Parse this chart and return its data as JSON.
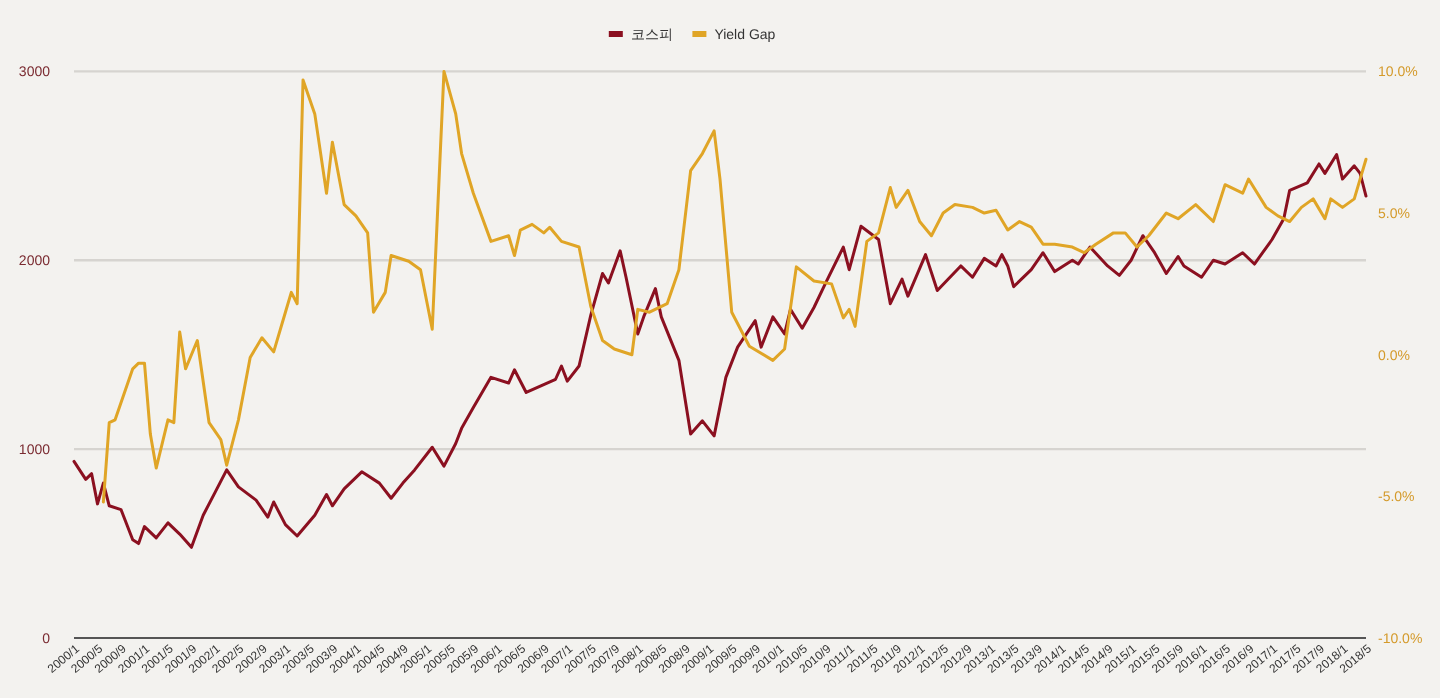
{
  "chart_data": {
    "type": "line",
    "legend": "top",
    "grid": "y",
    "xlim": [
      "2000-01",
      "2018-05"
    ],
    "ylim": [
      0,
      3000
    ],
    "yticks": [
      0,
      1000,
      2000,
      3000
    ],
    "y2lim": [
      -10,
      10
    ],
    "y2ticks": [
      {
        "value": -10,
        "label": "-10.0%"
      },
      {
        "value": -5,
        "label": "-5.0%"
      },
      {
        "value": 0,
        "label": "0.0%"
      },
      {
        "value": 5,
        "label": "5.0%"
      },
      {
        "value": 10,
        "label": "10.0%"
      }
    ],
    "xticks": [
      {
        "value": "2000-01",
        "label": "2000/1"
      },
      {
        "value": "2000-05",
        "label": "2000/5"
      },
      {
        "value": "2000-09",
        "label": "2000/9"
      },
      {
        "value": "2001-01",
        "label": "2001/1"
      },
      {
        "value": "2001-05",
        "label": "2001/5"
      },
      {
        "value": "2001-09",
        "label": "2001/9"
      },
      {
        "value": "2002-01",
        "label": "2002/1"
      },
      {
        "value": "2002-05",
        "label": "2002/5"
      },
      {
        "value": "2002-09",
        "label": "2002/9"
      },
      {
        "value": "2003-01",
        "label": "2003/1"
      },
      {
        "value": "2003-05",
        "label": "2003/5"
      },
      {
        "value": "2003-09",
        "label": "2003/9"
      },
      {
        "value": "2004-01",
        "label": "2004/1"
      },
      {
        "value": "2004-05",
        "label": "2004/5"
      },
      {
        "value": "2004-09",
        "label": "2004/9"
      },
      {
        "value": "2005-01",
        "label": "2005/1"
      },
      {
        "value": "2005-05",
        "label": "2005/5"
      },
      {
        "value": "2005-09",
        "label": "2005/9"
      },
      {
        "value": "2006-01",
        "label": "2006/1"
      },
      {
        "value": "2006-05",
        "label": "2006/5"
      },
      {
        "value": "2006-09",
        "label": "2006/9"
      },
      {
        "value": "2007-01",
        "label": "2007/1"
      },
      {
        "value": "2007-05",
        "label": "2007/5"
      },
      {
        "value": "2007-09",
        "label": "2007/9"
      },
      {
        "value": "2008-01",
        "label": "2008/1"
      },
      {
        "value": "2008-05",
        "label": "2008/5"
      },
      {
        "value": "2008-09",
        "label": "2008/9"
      },
      {
        "value": "2009-01",
        "label": "2009/1"
      },
      {
        "value": "2009-05",
        "label": "2009/5"
      },
      {
        "value": "2009-09",
        "label": "2009/9"
      },
      {
        "value": "2010-01",
        "label": "2010/1"
      },
      {
        "value": "2010-05",
        "label": "2010/5"
      },
      {
        "value": "2010-09",
        "label": "2010/9"
      },
      {
        "value": "2011-01",
        "label": "2011/1"
      },
      {
        "value": "2011-05",
        "label": "2011/5"
      },
      {
        "value": "2011-09",
        "label": "2011/9"
      },
      {
        "value": "2012-01",
        "label": "2012/1"
      },
      {
        "value": "2012-05",
        "label": "2012/5"
      },
      {
        "value": "2012-09",
        "label": "2012/9"
      },
      {
        "value": "2013-01",
        "label": "2013/1"
      },
      {
        "value": "2013-05",
        "label": "2013/5"
      },
      {
        "value": "2013-09",
        "label": "2013/9"
      },
      {
        "value": "2014-01",
        "label": "2014/1"
      },
      {
        "value": "2014-05",
        "label": "2014/5"
      },
      {
        "value": "2014-09",
        "label": "2014/9"
      },
      {
        "value": "2015-01",
        "label": "2015/1"
      },
      {
        "value": "2015-05",
        "label": "2015/5"
      },
      {
        "value": "2015-09",
        "label": "2015/9"
      },
      {
        "value": "2016-01",
        "label": "2016/1"
      },
      {
        "value": "2016-05",
        "label": "2016/5"
      },
      {
        "value": "2016-09",
        "label": "2016/9"
      },
      {
        "value": "2017-01",
        "label": "2017/1"
      },
      {
        "value": "2017-05",
        "label": "2017/5"
      },
      {
        "value": "2017-09",
        "label": "2017/9"
      },
      {
        "value": "2018-01",
        "label": "2018/1"
      },
      {
        "value": "2018-05",
        "label": "2018/5"
      }
    ],
    "series": [
      {
        "name": "코스피",
        "color": "#8b1020",
        "x": [
          "2000-01",
          "2000-03",
          "2000-04",
          "2000-05",
          "2000-06",
          "2000-07",
          "2000-09",
          "2000-11",
          "2000-12",
          "2001-01",
          "2001-03",
          "2001-05",
          "2001-07",
          "2001-09",
          "2001-11",
          "2002-01",
          "2002-03",
          "2002-05",
          "2002-08",
          "2002-10",
          "2002-11",
          "2003-01",
          "2003-03",
          "2003-06",
          "2003-08",
          "2003-09",
          "2003-11",
          "2004-02",
          "2004-05",
          "2004-07",
          "2004-09",
          "2004-11",
          "2005-02",
          "2005-04",
          "2005-06",
          "2005-07",
          "2005-09",
          "2005-12",
          "2006-03",
          "2006-04",
          "2006-06",
          "2006-11",
          "2006-12",
          "2007-01",
          "2007-03",
          "2007-05",
          "2007-07",
          "2007-08",
          "2007-10",
          "2007-11",
          "2008-01",
          "2008-02",
          "2008-04",
          "2008-05",
          "2008-08",
          "2008-10",
          "2008-12",
          "2009-02",
          "2009-04",
          "2009-06",
          "2009-09",
          "2009-10",
          "2009-12",
          "2010-02",
          "2010-03",
          "2010-05",
          "2010-07",
          "2010-09",
          "2010-12",
          "2011-01",
          "2011-03",
          "2011-06",
          "2011-08",
          "2011-10",
          "2011-11",
          "2012-02",
          "2012-04",
          "2012-08",
          "2012-10",
          "2012-12",
          "2013-02",
          "2013-03",
          "2013-04",
          "2013-05",
          "2013-08",
          "2013-10",
          "2013-12",
          "2014-03",
          "2014-04",
          "2014-06",
          "2014-09",
          "2014-11",
          "2015-01",
          "2015-03",
          "2015-05",
          "2015-07",
          "2015-09",
          "2015-10",
          "2016-01",
          "2016-03",
          "2016-05",
          "2016-08",
          "2016-10",
          "2017-01",
          "2017-03",
          "2017-04",
          "2017-07",
          "2017-09",
          "2017-10",
          "2017-12",
          "2018-01",
          "2018-03",
          "2018-04",
          "2018-05"
        ],
        "values": [
          935,
          840,
          870,
          710,
          820,
          700,
          680,
          520,
          500,
          590,
          530,
          610,
          550,
          480,
          650,
          770,
          890,
          800,
          730,
          640,
          720,
          600,
          540,
          650,
          760,
          700,
          790,
          880,
          820,
          740,
          820,
          890,
          1010,
          910,
          1030,
          1110,
          1220,
          1380,
          1350,
          1420,
          1300,
          1370,
          1440,
          1360,
          1440,
          1710,
          1930,
          1880,
          2050,
          1910,
          1610,
          1700,
          1850,
          1700,
          1470,
          1080,
          1150,
          1070,
          1380,
          1540,
          1680,
          1540,
          1700,
          1610,
          1740,
          1640,
          1750,
          1880,
          2070,
          1950,
          2180,
          2110,
          1770,
          1900,
          1810,
          2030,
          1840,
          1970,
          1910,
          2010,
          1970,
          2030,
          1970,
          1860,
          1950,
          2040,
          1940,
          2000,
          1980,
          2070,
          1970,
          1920,
          2000,
          2130,
          2040,
          1930,
          2020,
          1970,
          1910,
          2000,
          1980,
          2040,
          1980,
          2110,
          2220,
          2370,
          2410,
          2510,
          2460,
          2560,
          2430,
          2500,
          2460,
          2340
        ]
      },
      {
        "name": "Yield Gap",
        "color": "#e0a526",
        "axis": "y2",
        "x": [
          "2000-06",
          "2000-07",
          "2000-08",
          "2000-11",
          "2000-12",
          "2001-01",
          "2001-02",
          "2001-03",
          "2001-05",
          "2001-06",
          "2001-07",
          "2001-08",
          "2001-10",
          "2001-12",
          "2002-02",
          "2002-03",
          "2002-05",
          "2002-07",
          "2002-09",
          "2002-11",
          "2003-01",
          "2003-02",
          "2003-03",
          "2003-04",
          "2003-06",
          "2003-08",
          "2003-09",
          "2003-11",
          "2004-01",
          "2004-03",
          "2004-04",
          "2004-06",
          "2004-07",
          "2004-10",
          "2004-12",
          "2005-02",
          "2005-04",
          "2005-06",
          "2005-07",
          "2005-09",
          "2005-12",
          "2006-03",
          "2006-04",
          "2006-05",
          "2006-07",
          "2006-09",
          "2006-10",
          "2006-12",
          "2007-03",
          "2007-05",
          "2007-07",
          "2007-09",
          "2007-12",
          "2008-01",
          "2008-03",
          "2008-06",
          "2008-08",
          "2008-10",
          "2008-12",
          "2009-02",
          "2009-03",
          "2009-05",
          "2009-08",
          "2009-12",
          "2010-02",
          "2010-04",
          "2010-07",
          "2010-10",
          "2010-12",
          "2011-01",
          "2011-02",
          "2011-04",
          "2011-06",
          "2011-08",
          "2011-09",
          "2011-11",
          "2012-01",
          "2012-03",
          "2012-05",
          "2012-07",
          "2012-10",
          "2012-12",
          "2013-02",
          "2013-04",
          "2013-06",
          "2013-08",
          "2013-10",
          "2013-12",
          "2014-03",
          "2014-05",
          "2014-07",
          "2014-10",
          "2014-12",
          "2015-02",
          "2015-04",
          "2015-07",
          "2015-09",
          "2015-12",
          "2016-03",
          "2016-05",
          "2016-08",
          "2016-09",
          "2016-12",
          "2017-02",
          "2017-04",
          "2017-06",
          "2017-08",
          "2017-10",
          "2017-11",
          "2018-01",
          "2018-03",
          "2018-04",
          "2018-05"
        ],
        "values": [
          -5.2,
          -2.4,
          -2.3,
          -0.5,
          -0.3,
          -0.3,
          -2.8,
          -4.0,
          -2.3,
          -2.4,
          0.8,
          -0.5,
          0.5,
          -2.4,
          -3.0,
          -3.9,
          -2.3,
          -0.1,
          0.6,
          0.1,
          1.5,
          2.2,
          1.8,
          9.7,
          8.5,
          5.7,
          7.5,
          5.3,
          4.9,
          4.3,
          1.5,
          2.2,
          3.5,
          3.3,
          3.0,
          0.9,
          10.0,
          8.5,
          7.1,
          5.7,
          4.0,
          4.2,
          3.5,
          4.4,
          4.6,
          4.3,
          4.5,
          4.0,
          3.8,
          1.7,
          0.5,
          0.2,
          0.0,
          1.6,
          1.5,
          1.8,
          3.0,
          6.5,
          7.1,
          7.9,
          6.2,
          1.5,
          0.3,
          -0.2,
          0.2,
          3.1,
          2.6,
          2.5,
          1.3,
          1.6,
          1.0,
          4.0,
          4.3,
          5.9,
          5.2,
          5.8,
          4.7,
          4.2,
          5.0,
          5.3,
          5.2,
          5.0,
          5.1,
          4.4,
          4.7,
          4.5,
          3.9,
          3.9,
          3.8,
          3.6,
          3.9,
          4.3,
          4.3,
          3.8,
          4.2,
          5.0,
          4.8,
          5.3,
          4.7,
          6.0,
          5.7,
          6.2,
          5.2,
          4.9,
          4.7,
          5.2,
          5.5,
          4.8,
          5.5,
          5.2,
          5.5,
          6.2,
          6.9
        ]
      }
    ]
  }
}
